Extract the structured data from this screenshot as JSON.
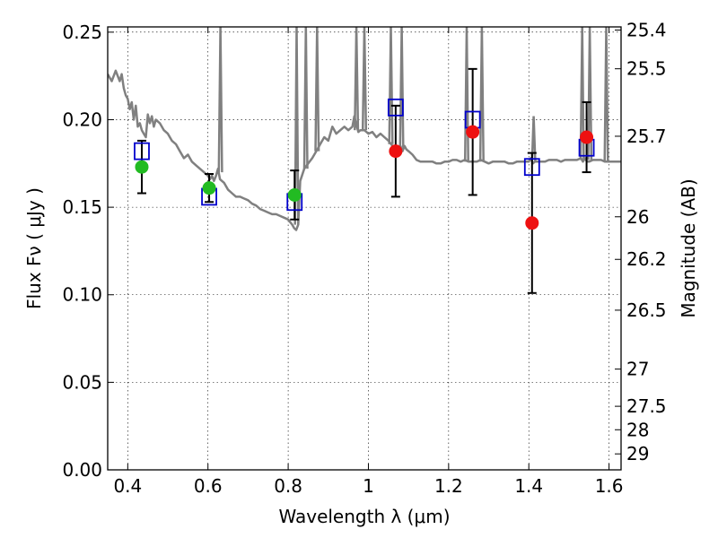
{
  "chart_data": {
    "type": "scatter",
    "title": "",
    "xlabel": "Wavelength  λ (μm)",
    "ylabel": "Flux  Fν  ( μJy )",
    "ylabel_right": "Magnitude (AB)",
    "xlim": [
      0.35,
      1.63
    ],
    "ylim": [
      0.0,
      0.253
    ],
    "grid": true,
    "x_ticks": [
      0.4,
      0.6,
      0.8,
      1.0,
      1.2,
      1.4,
      1.6
    ],
    "x_tick_labels": [
      "0.4",
      "0.6",
      "0.8",
      "1",
      "1.2",
      "1.4",
      "1.6"
    ],
    "y_ticks": [
      0.0,
      0.05,
      0.1,
      0.15,
      0.2,
      0.25
    ],
    "y_tick_labels": [
      "0.00",
      "0.05",
      "0.10",
      "0.15",
      "0.20",
      "0.25"
    ],
    "right_ticks": [
      {
        "label": "25.4",
        "mag": 25.4
      },
      {
        "label": "25.5",
        "mag": 25.5
      },
      {
        "label": "25.7",
        "mag": 25.7
      },
      {
        "label": "26",
        "mag": 26.0
      },
      {
        "label": "26.2",
        "mag": 26.2
      },
      {
        "label": "26.5",
        "mag": 26.5
      },
      {
        "label": "27",
        "mag": 27.0
      },
      {
        "label": "27.5",
        "mag": 27.5
      },
      {
        "label": "28",
        "mag": 28.0
      },
      {
        "label": "29",
        "mag": 29.0
      }
    ],
    "colors": {
      "model": "#808080",
      "observed_optical": "#22bb22",
      "observed_nir": "#ee1111",
      "model_photometry": "#0000cc",
      "errorbar": "#000000"
    },
    "series": [
      {
        "kind": "model_spectrum",
        "x": [
          0.35,
          0.36,
          0.37,
          0.38,
          0.385,
          0.39,
          0.395,
          0.4,
          0.405,
          0.41,
          0.415,
          0.42,
          0.425,
          0.43,
          0.435,
          0.44,
          0.445,
          0.45,
          0.455,
          0.46,
          0.465,
          0.47,
          0.48,
          0.49,
          0.5,
          0.51,
          0.52,
          0.53,
          0.54,
          0.55,
          0.56,
          0.57,
          0.58,
          0.59,
          0.6,
          0.605,
          0.61,
          0.615,
          0.62,
          0.625,
          0.63,
          0.64,
          0.65,
          0.66,
          0.67,
          0.68,
          0.69,
          0.7,
          0.71,
          0.72,
          0.73,
          0.74,
          0.75,
          0.76,
          0.77,
          0.78,
          0.79,
          0.8,
          0.81,
          0.815,
          0.82,
          0.825,
          0.83,
          0.84,
          0.85,
          0.86,
          0.87,
          0.875,
          0.88,
          0.89,
          0.9,
          0.91,
          0.92,
          0.93,
          0.94,
          0.95,
          0.96,
          0.965,
          0.97,
          0.975,
          0.98,
          0.99,
          1.0,
          1.01,
          1.02,
          1.03,
          1.04,
          1.05,
          1.06,
          1.07,
          1.08,
          1.085,
          1.09,
          1.095,
          1.1,
          1.11,
          1.12,
          1.13,
          1.14,
          1.15,
          1.16,
          1.17,
          1.18,
          1.19,
          1.2,
          1.21,
          1.22,
          1.23,
          1.24,
          1.25,
          1.26,
          1.27,
          1.28,
          1.29,
          1.3,
          1.31,
          1.32,
          1.33,
          1.34,
          1.35,
          1.36,
          1.37,
          1.38,
          1.39,
          1.4,
          1.405,
          1.41,
          1.415,
          1.42,
          1.43,
          1.44,
          1.45,
          1.46,
          1.47,
          1.48,
          1.49,
          1.5,
          1.51,
          1.52,
          1.53,
          1.535,
          1.54,
          1.545,
          1.55,
          1.56,
          1.57,
          1.58,
          1.59,
          1.6,
          1.61,
          1.62,
          1.63
        ],
        "y": [
          0.226,
          0.222,
          0.228,
          0.222,
          0.226,
          0.218,
          0.214,
          0.212,
          0.206,
          0.21,
          0.2,
          0.208,
          0.196,
          0.198,
          0.194,
          0.192,
          0.19,
          0.203,
          0.198,
          0.202,
          0.196,
          0.2,
          0.198,
          0.194,
          0.192,
          0.188,
          0.186,
          0.182,
          0.178,
          0.18,
          0.176,
          0.174,
          0.172,
          0.17,
          0.168,
          0.166,
          0.168,
          0.165,
          0.168,
          0.172,
          0.166,
          0.164,
          0.16,
          0.158,
          0.156,
          0.156,
          0.155,
          0.154,
          0.152,
          0.151,
          0.149,
          0.148,
          0.147,
          0.146,
          0.146,
          0.145,
          0.144,
          0.143,
          0.14,
          0.138,
          0.137,
          0.14,
          0.165,
          0.172,
          0.175,
          0.178,
          0.182,
          0.184,
          0.186,
          0.19,
          0.188,
          0.196,
          0.192,
          0.194,
          0.196,
          0.194,
          0.196,
          0.202,
          0.197,
          0.193,
          0.194,
          0.194,
          0.192,
          0.193,
          0.19,
          0.192,
          0.19,
          0.188,
          0.185,
          0.184,
          0.185,
          0.182,
          0.185,
          0.183,
          0.182,
          0.18,
          0.177,
          0.176,
          0.176,
          0.176,
          0.176,
          0.175,
          0.175,
          0.176,
          0.176,
          0.177,
          0.177,
          0.176,
          0.177,
          0.176,
          0.176,
          0.176,
          0.177,
          0.176,
          0.175,
          0.176,
          0.176,
          0.176,
          0.176,
          0.175,
          0.175,
          0.176,
          0.176,
          0.176,
          0.176,
          0.178,
          0.175,
          0.176,
          0.176,
          0.176,
          0.176,
          0.177,
          0.177,
          0.177,
          0.176,
          0.177,
          0.177,
          0.177,
          0.177,
          0.178,
          0.176,
          0.178,
          0.176,
          0.176,
          0.177,
          0.177,
          0.177,
          0.176,
          0.176,
          0.176,
          0.176,
          0.176
        ],
        "emission_lines": [
          {
            "x": 0.631,
            "peak": 0.253,
            "base": 0.17
          },
          {
            "x": 0.821,
            "peak": 0.253,
            "base": 0.14
          },
          {
            "x": 0.844,
            "peak": 0.253,
            "base": 0.172
          },
          {
            "x": 0.872,
            "peak": 0.253,
            "base": 0.182
          },
          {
            "x": 0.97,
            "peak": 0.253,
            "base": 0.194
          },
          {
            "x": 0.99,
            "peak": 0.253,
            "base": 0.194
          },
          {
            "x": 1.056,
            "peak": 0.253,
            "base": 0.186
          },
          {
            "x": 1.083,
            "peak": 0.253,
            "base": 0.184
          },
          {
            "x": 1.245,
            "peak": 0.253,
            "base": 0.176
          },
          {
            "x": 1.283,
            "peak": 0.253,
            "base": 0.176
          },
          {
            "x": 1.412,
            "peak": 0.202,
            "base": 0.176
          },
          {
            "x": 1.533,
            "peak": 0.253,
            "base": 0.177
          },
          {
            "x": 1.552,
            "peak": 0.253,
            "base": 0.177
          },
          {
            "x": 1.593,
            "peak": 0.253,
            "base": 0.176
          }
        ]
      },
      {
        "kind": "observed_flux",
        "x": [
          0.435,
          0.603,
          0.816,
          1.068,
          1.26,
          1.408,
          1.544
        ],
        "y": [
          0.173,
          0.161,
          0.157,
          0.182,
          0.193,
          0.141,
          0.19
        ],
        "yerr": [
          0.015,
          0.008,
          0.014,
          0.026,
          0.036,
          0.04,
          0.02
        ],
        "band": [
          "optical",
          "optical",
          "optical",
          "nir",
          "nir",
          "nir",
          "nir"
        ]
      },
      {
        "kind": "model_photometry",
        "x": [
          0.435,
          0.603,
          0.816,
          1.068,
          1.26,
          1.408,
          1.544
        ],
        "y": [
          0.182,
          0.156,
          0.153,
          0.207,
          0.2,
          0.173,
          0.184
        ]
      }
    ]
  }
}
